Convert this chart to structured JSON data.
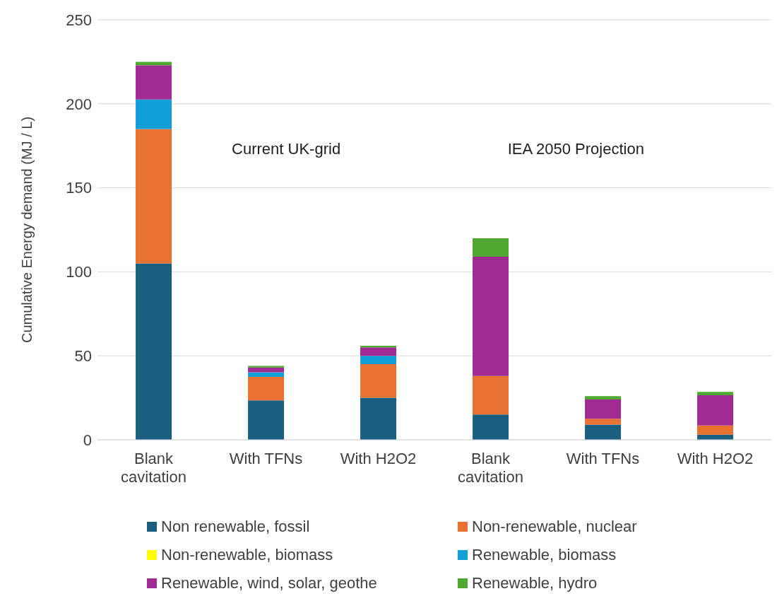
{
  "chart_data": {
    "type": "bar",
    "stacked": true,
    "ylabel": "Cumulative Energy demand (MJ / L)",
    "categories": [
      "Blank cavitation",
      "With TFNs",
      "With H2O2",
      "Blank cavitation",
      "With TFNs",
      "With H2O2"
    ],
    "series": [
      {
        "name": "Non renewable, fossil",
        "color": "#1a5f80",
        "values": [
          105,
          23.5,
          25,
          15,
          9,
          3
        ]
      },
      {
        "name": "Non-renewable, nuclear",
        "color": "#e97132",
        "values": [
          80,
          14,
          20,
          23,
          3.5,
          5.5
        ]
      },
      {
        "name": "Non-renewable, biomass",
        "color": "#ffff00",
        "values": [
          0,
          0,
          0,
          0,
          0,
          0
        ]
      },
      {
        "name": "Renewable, biomass",
        "color": "#109fd8",
        "values": [
          17.5,
          2.7,
          5,
          0,
          0,
          0
        ]
      },
      {
        "name": "Renewable, wind, solar, geothe",
        "color": "#a02b93",
        "values": [
          20.5,
          2.8,
          5,
          71,
          11.5,
          18
        ]
      },
      {
        "name": "Renewable, hydro",
        "color": "#4ea72e",
        "values": [
          2,
          1,
          1,
          11,
          2,
          2
        ]
      }
    ],
    "annotations": [
      "Current UK-grid",
      "IEA 2050 Projection"
    ],
    "ylim": [
      0,
      250
    ],
    "yticks": [
      0,
      50,
      100,
      150,
      200,
      250
    ],
    "grid": "y",
    "legend": "bottom"
  }
}
